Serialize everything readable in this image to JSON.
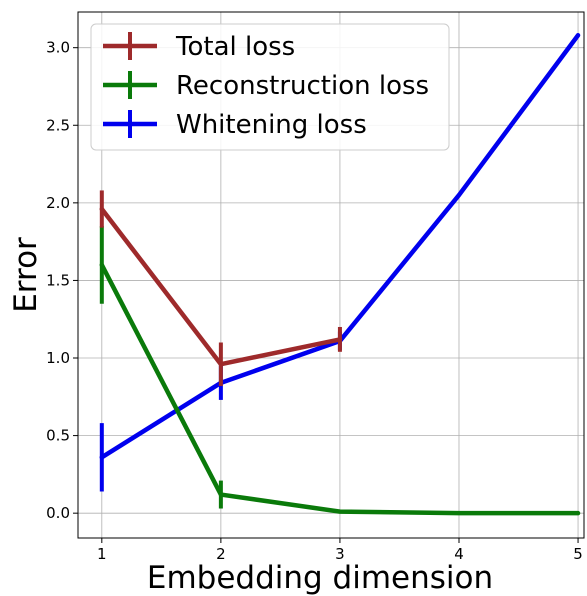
{
  "chart_data": {
    "type": "line",
    "xlabel": "Embedding dimension",
    "ylabel": "Error",
    "xlim": [
      0.8,
      5.05
    ],
    "ylim": [
      -0.16,
      3.23
    ],
    "x_ticks": [
      "1",
      "2",
      "3",
      "4",
      "5"
    ],
    "y_ticks": [
      "0.0",
      "0.5",
      "1.0",
      "1.5",
      "2.0",
      "2.5",
      "3.0"
    ],
    "grid": true,
    "legend_position": "top-left",
    "series": [
      {
        "name": "Total loss",
        "color": "#9e2a2b",
        "x": [
          1,
          2,
          3
        ],
        "values": [
          1.96,
          0.96,
          1.12
        ],
        "errors": [
          0.12,
          0.14,
          0.08
        ]
      },
      {
        "name": "Reconstruction loss",
        "color": "#0a7a0a",
        "x": [
          1,
          2,
          3,
          4,
          5
        ],
        "values": [
          1.6,
          0.12,
          0.01,
          0.0,
          0.0
        ],
        "errors": [
          0.25,
          0.09,
          0.0,
          0.0,
          0.0
        ]
      },
      {
        "name": "Whitening loss",
        "color": "#0000ee",
        "x": [
          1,
          2,
          3,
          4,
          5
        ],
        "values": [
          0.36,
          0.84,
          1.11,
          2.05,
          3.08
        ],
        "errors": [
          0.22,
          0.11,
          0.06,
          0.0,
          0.0
        ]
      }
    ]
  }
}
